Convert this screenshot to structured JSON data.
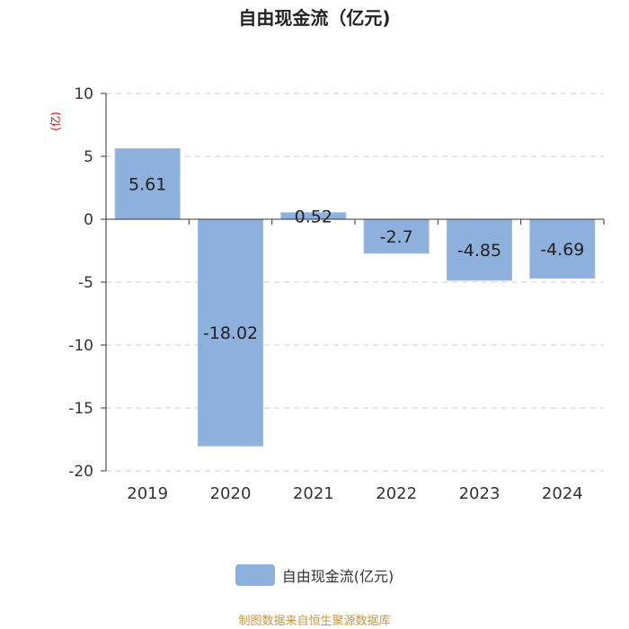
{
  "chart_data": {
    "type": "bar",
    "title": "自由现金流（亿元)",
    "ylabel": "(亿)",
    "xlabel": "",
    "categories": [
      "2019",
      "2020",
      "2021",
      "2022",
      "2023",
      "2024"
    ],
    "series": [
      {
        "name": "自由现金流(亿元)",
        "values": [
          5.61,
          -18.02,
          0.52,
          -2.7,
          -4.85,
          -4.69
        ]
      }
    ],
    "value_labels": [
      "5.61",
      "-18.02",
      "0.52",
      "-2.7",
      "-4.85",
      "-4.69"
    ],
    "ylim": [
      -20,
      10
    ],
    "yticks": [
      10,
      5,
      0,
      -5,
      -10,
      -15,
      -20
    ],
    "ytick_labels": [
      "10",
      "5",
      "0",
      "-5",
      "-10",
      "-15",
      "-20"
    ],
    "grid": true,
    "legend_position": "bottom-center"
  },
  "colors": {
    "bar": "#8eb0dc",
    "bar_edge": "#9dbbe3",
    "axis": "#333333",
    "grid": "#cccccc",
    "ylabel": "#e00000",
    "source": "#c9963a"
  },
  "source_text": "制图数据来自恒生聚源数据库"
}
